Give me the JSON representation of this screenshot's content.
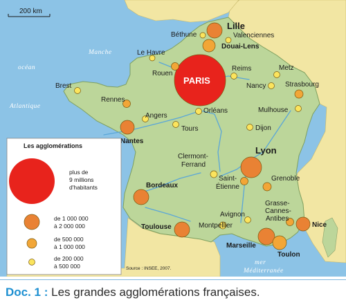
{
  "scale": {
    "label": "200 km"
  },
  "seas": {
    "manche": "Manche",
    "ocean": "océan",
    "atlantique": "Atlantique",
    "mer": "mer",
    "mediterranee": "Méditerranée"
  },
  "cities": {
    "paris": "PARIS",
    "lille": "Lille",
    "douai_lens": "Douai-Lens",
    "bethune": "Béthune",
    "valenciennes": "Valenciennes",
    "le_havre": "Le Havre",
    "rouen": "Rouen",
    "reims": "Reims",
    "metz": "Metz",
    "nancy": "Nancy",
    "strasbourg": "Strasbourg",
    "brest": "Brest",
    "rennes": "Rennes",
    "angers": "Angers",
    "orleans": "Orléans",
    "tours": "Tours",
    "mulhouse": "Mulhouse",
    "dijon": "Dijon",
    "nantes": "Nantes",
    "clermont_1": "Clermont-",
    "clermont_2": "Ferrand",
    "lyon": "Lyon",
    "saint_etienne_1": "Saint-",
    "saint_etienne_2": "Étienne",
    "grenoble": "Grenoble",
    "bordeaux": "Bordeaux",
    "grasse_1": "Grasse-",
    "grasse_2": "Cannes-",
    "grasse_3": "Antibes",
    "avignon": "Avignon",
    "montpellier": "Montpellier",
    "toulouse": "Toulouse",
    "nice": "Nice",
    "marseille": "Marseille",
    "toulon": "Toulon"
  },
  "legend": {
    "title": "Les agglomérations",
    "cat1": [
      "plus de",
      "9 millions",
      "d'habitants"
    ],
    "cat2": [
      "de 1 000 000",
      "à 2 000 000"
    ],
    "cat3": [
      "de 500 000",
      "à 1 000 000"
    ],
    "cat4": [
      "de 200 000",
      "à 500 000"
    ]
  },
  "source": "Source : INSEE, 2007.",
  "caption": {
    "doc": "Doc. 1 :",
    "text": " Les grandes agglomérations françaises."
  },
  "colors": {
    "sea": "#8cc3e6",
    "france": "#bcd69a",
    "neighbors": "#f2e6a3",
    "rivers": "#5aa6d8",
    "paris_circle": "#e8231c",
    "large_circle": "#e98234",
    "medium_circle": "#f2a637",
    "small_circle": "#fbe45d"
  }
}
